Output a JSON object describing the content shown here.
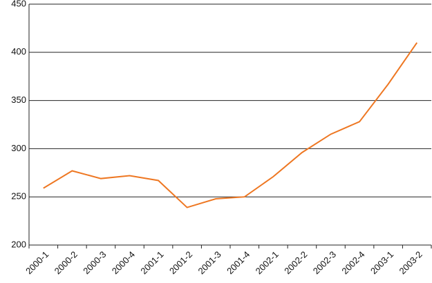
{
  "chart_data": {
    "type": "line",
    "categories": [
      "2000-1",
      "2000-2",
      "2000-3",
      "2000-4",
      "2001-1",
      "2001-2",
      "2001-3",
      "2001-4",
      "2002-1",
      "2002-2",
      "2002-3",
      "2002-4",
      "2003-1",
      "2003-2"
    ],
    "series": [
      {
        "color": "#ee7722",
        "values": [
          259,
          277,
          269,
          272,
          267,
          239,
          248,
          250,
          271,
          296,
          315,
          328,
          367,
          410
        ]
      }
    ],
    "ylim": [
      200,
      450
    ],
    "yticks": [
      200,
      250,
      300,
      350,
      400,
      450
    ],
    "grid": true
  }
}
